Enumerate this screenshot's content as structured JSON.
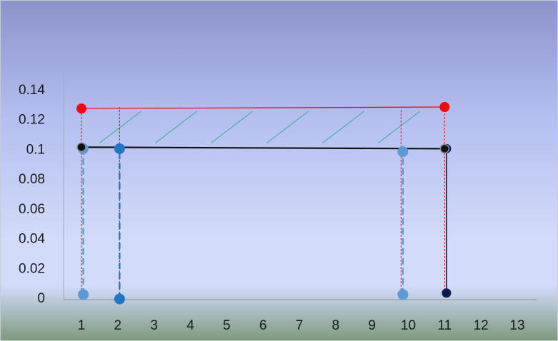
{
  "chart_data": {
    "type": "line",
    "title": "",
    "xlabel": "",
    "ylabel": "",
    "x_ticks": [
      "1",
      "2",
      "3",
      "4",
      "5",
      "6",
      "7",
      "8",
      "9",
      "10",
      "11",
      "12",
      "13"
    ],
    "y_ticks": [
      "0",
      "0.02",
      "0.04",
      "0.06",
      "0.08",
      "0.1",
      "0.12",
      "0.14"
    ],
    "xlim": [
      0.5,
      13.5
    ],
    "ylim": [
      0,
      0.15
    ],
    "grid": false,
    "legend": "none",
    "colors": {
      "background_top": "#8c93cc",
      "background_mid": "#d3dbfa",
      "background_bottom": "#7e9a7f",
      "red": "#ff0000",
      "black": "#111111",
      "light_blue": "#5b9bd5",
      "blue": "#1f77c4",
      "dark_navy": "#0b1b4d",
      "teal_hatch": "#39b08a"
    },
    "series": [
      {
        "color": "red",
        "style": "solid",
        "points": [
          {
            "x": 1,
            "y": 0.127
          },
          {
            "x": 11,
            "y": 0.128
          }
        ]
      },
      {
        "color": "black",
        "style": "solid",
        "points": [
          {
            "x": 1,
            "y": 0.101
          },
          {
            "x": 11,
            "y": 0.1
          }
        ]
      },
      {
        "color": "light_blue",
        "style": "dashed",
        "points": [
          {
            "x": 1.05,
            "y": 0.002
          },
          {
            "x": 1.05,
            "y": 0.1
          }
        ]
      },
      {
        "color": "blue",
        "style": "dashed",
        "points": [
          {
            "x": 2.05,
            "y": -0.001
          },
          {
            "x": 2.05,
            "y": 0.1
          }
        ]
      },
      {
        "color": "light_blue",
        "style": "dashed",
        "points": [
          {
            "x": 9.85,
            "y": 0.002
          },
          {
            "x": 9.85,
            "y": 0.098
          }
        ]
      },
      {
        "color": "dark_navy",
        "style": "solid",
        "points": [
          {
            "x": 11.05,
            "y": 0.003
          },
          {
            "x": 11.05,
            "y": 0.1
          }
        ]
      }
    ],
    "guide_lines": [
      {
        "x": 1,
        "y_from": 0.0,
        "y_to": 0.127
      },
      {
        "x": 2.05,
        "y_from": 0.0,
        "y_to": 0.128
      },
      {
        "x": 9.8,
        "y_from": 0.0,
        "y_to": 0.126
      },
      {
        "x": 11,
        "y_from": 0.0,
        "y_to": 0.128
      }
    ],
    "hatch_region": {
      "x": [
        1.5,
        10.7
      ],
      "y": [
        0.1,
        0.127
      ]
    }
  }
}
